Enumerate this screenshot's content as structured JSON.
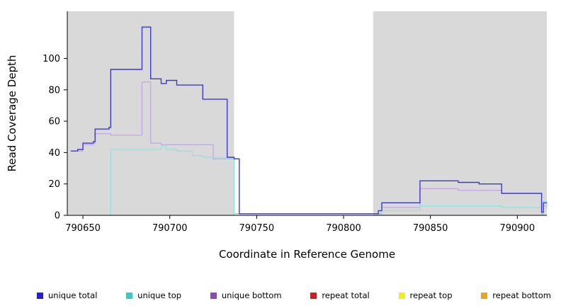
{
  "chart_data": {
    "type": "line",
    "subtype": "step",
    "title": "",
    "xlabel": "Coordinate in Reference Genome",
    "ylabel": "Read Coverage Depth",
    "xlim": [
      790641,
      790917
    ],
    "ylim": [
      0,
      130
    ],
    "xticks": [
      790650,
      790700,
      790750,
      790800,
      790850,
      790900
    ],
    "yticks": [
      0,
      20,
      40,
      60,
      80,
      100
    ],
    "grid": false,
    "legend_position": "bottom",
    "plot_background": "#ffffff",
    "shaded_regions": [
      {
        "x0": 790641,
        "x1": 790737,
        "color": "#d9d9d9"
      },
      {
        "x0": 790817,
        "x1": 790917,
        "color": "#d9d9d9"
      }
    ],
    "draw_order": [
      3,
      4,
      5,
      2,
      1,
      0
    ],
    "series": [
      {
        "name": "unique total",
        "color": "#3a3ad0",
        "swatch": "#2323c8",
        "width": 1.4,
        "points": [
          [
            790643,
            41
          ],
          [
            790647,
            42
          ],
          [
            790650,
            46
          ],
          [
            790656,
            47
          ],
          [
            790657,
            55
          ],
          [
            790665,
            56
          ],
          [
            790666,
            93
          ],
          [
            790683,
            93
          ],
          [
            790684,
            120
          ],
          [
            790688,
            120
          ],
          [
            790689,
            87
          ],
          [
            790694,
            87
          ],
          [
            790695,
            84
          ],
          [
            790698,
            86
          ],
          [
            790703,
            86
          ],
          [
            790704,
            83
          ],
          [
            790718,
            83
          ],
          [
            790719,
            74
          ],
          [
            790732,
            74
          ],
          [
            790733,
            37
          ],
          [
            790736,
            37
          ],
          [
            790737,
            36
          ],
          [
            790740,
            1
          ],
          [
            790817,
            1
          ],
          [
            790820,
            3
          ],
          [
            790822,
            8
          ],
          [
            790843,
            8
          ],
          [
            790844,
            22
          ],
          [
            790865,
            22
          ],
          [
            790866,
            21
          ],
          [
            790877,
            21
          ],
          [
            790878,
            20
          ],
          [
            790890,
            20
          ],
          [
            790891,
            14
          ],
          [
            790913,
            14
          ],
          [
            790914,
            2
          ],
          [
            790915,
            8
          ],
          [
            790917,
            8
          ]
        ]
      },
      {
        "name": "unique top",
        "color": "#86e4df",
        "swatch": "#3fc8c3",
        "width": 1.1,
        "points": [
          [
            790643,
            0
          ],
          [
            790665,
            0
          ],
          [
            790666,
            42
          ],
          [
            790694,
            42
          ],
          [
            790695,
            44
          ],
          [
            790697,
            44
          ],
          [
            790698,
            42
          ],
          [
            790703,
            42
          ],
          [
            790704,
            41
          ],
          [
            790712,
            41
          ],
          [
            790713,
            38
          ],
          [
            790718,
            38
          ],
          [
            790719,
            37
          ],
          [
            790732,
            37
          ],
          [
            790733,
            36
          ],
          [
            790736,
            36
          ],
          [
            790737,
            0
          ],
          [
            790817,
            0
          ],
          [
            790822,
            3
          ],
          [
            790843,
            3
          ],
          [
            790844,
            6
          ],
          [
            790890,
            6
          ],
          [
            790891,
            5
          ],
          [
            790913,
            5
          ],
          [
            790914,
            0
          ],
          [
            790915,
            9
          ],
          [
            790916,
            9
          ],
          [
            790917,
            4
          ]
        ]
      },
      {
        "name": "unique bottom",
        "color": "#bfa1dd",
        "swatch": "#9146c0",
        "width": 1.1,
        "points": [
          [
            790643,
            41
          ],
          [
            790650,
            45
          ],
          [
            790656,
            46
          ],
          [
            790657,
            52
          ],
          [
            790665,
            52
          ],
          [
            790666,
            51
          ],
          [
            790683,
            51
          ],
          [
            790684,
            85
          ],
          [
            790688,
            85
          ],
          [
            790689,
            46
          ],
          [
            790694,
            46
          ],
          [
            790695,
            45
          ],
          [
            790724,
            45
          ],
          [
            790725,
            36
          ],
          [
            790736,
            36
          ],
          [
            790737,
            1
          ],
          [
            790817,
            1
          ],
          [
            790822,
            5
          ],
          [
            790843,
            5
          ],
          [
            790844,
            17
          ],
          [
            790865,
            17
          ],
          [
            790866,
            16
          ],
          [
            790890,
            16
          ],
          [
            790891,
            14
          ],
          [
            790913,
            14
          ],
          [
            790914,
            1
          ],
          [
            790915,
            6
          ],
          [
            790917,
            6
          ]
        ]
      },
      {
        "name": "repeat total",
        "color": "#c62323",
        "swatch": "#c62323",
        "width": 1.1,
        "points": [
          [
            790653,
            0
          ],
          [
            790740,
            0
          ],
          null,
          [
            790818,
            0
          ],
          [
            790908,
            0
          ]
        ]
      },
      {
        "name": "repeat top",
        "color": "#eded1f",
        "swatch": "#eded1f",
        "width": 1.1,
        "points": [
          [
            790653,
            0
          ],
          [
            790740,
            0
          ],
          null,
          [
            790818,
            0
          ],
          [
            790908,
            0
          ]
        ]
      },
      {
        "name": "repeat bottom",
        "color": "#efa21f",
        "swatch": "#efa21f",
        "width": 1.1,
        "points": [
          [
            790653,
            0
          ],
          [
            790740,
            0
          ],
          null,
          [
            790818,
            0
          ],
          [
            790908,
            0
          ]
        ]
      }
    ]
  }
}
